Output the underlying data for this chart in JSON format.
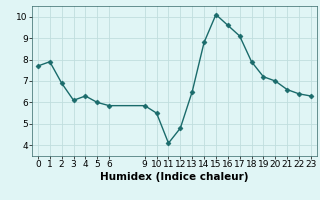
{
  "x": [
    0,
    1,
    2,
    3,
    4,
    5,
    6,
    9,
    10,
    11,
    12,
    13,
    14,
    15,
    16,
    17,
    18,
    19,
    20,
    21,
    22,
    23
  ],
  "y": [
    7.7,
    7.9,
    6.9,
    6.1,
    6.3,
    6.0,
    5.85,
    5.85,
    5.5,
    4.1,
    4.8,
    6.5,
    8.8,
    10.1,
    9.6,
    9.1,
    7.9,
    7.2,
    7.0,
    6.6,
    6.4,
    6.3
  ],
  "line_color": "#1a6b6b",
  "marker_color": "#1a6b6b",
  "bg_color": "#e0f5f5",
  "grid_color": "#c0dede",
  "xlabel": "Humidex (Indice chaleur)",
  "xlabel_fontsize": 7.5,
  "ylim": [
    3.5,
    10.5
  ],
  "xlim": [
    -0.5,
    23.5
  ],
  "yticks": [
    4,
    5,
    6,
    7,
    8,
    9,
    10
  ],
  "xticks": [
    0,
    1,
    2,
    3,
    4,
    5,
    6,
    9,
    10,
    11,
    12,
    13,
    14,
    15,
    16,
    17,
    18,
    19,
    20,
    21,
    22,
    23
  ],
  "tick_fontsize": 6.5,
  "line_width": 1.0,
  "marker_size": 2.5
}
